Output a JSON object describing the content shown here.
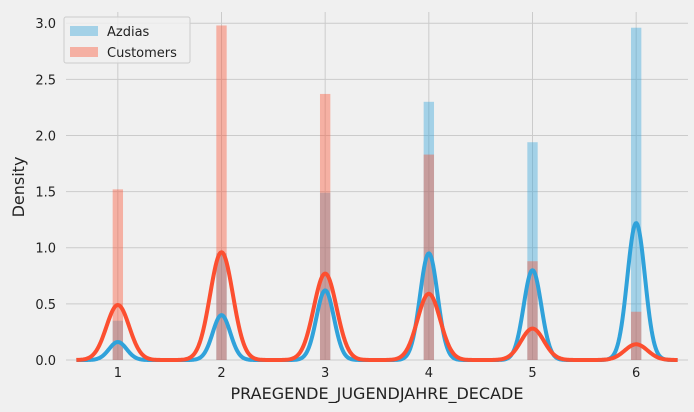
{
  "chart_data": {
    "type": "bar",
    "title": "",
    "xlabel": "PRAEGENDE_JUGENDJAHRE_DECADE",
    "ylabel": "Density",
    "xlim": [
      0.5,
      6.5
    ],
    "ylim": [
      0,
      3.1
    ],
    "xticks": [
      1,
      2,
      3,
      4,
      5,
      6
    ],
    "yticks": [
      0.0,
      0.5,
      1.0,
      1.5,
      2.0,
      2.5,
      3.0
    ],
    "grid": true,
    "legend_position": "top-left",
    "series": [
      {
        "name": "Azdias",
        "color": "#30a2da",
        "hist": {
          "x": [
            1,
            2,
            3,
            4,
            5,
            6
          ],
          "values": [
            0.35,
            0.95,
            1.49,
            2.3,
            1.94,
            2.96
          ]
        },
        "kde": {
          "x": [
            1,
            2,
            3,
            4,
            5,
            6
          ],
          "peaks": [
            0.16,
            0.4,
            0.62,
            0.95,
            0.8,
            1.22
          ],
          "sigma": 0.085
        }
      },
      {
        "name": "Customers",
        "color": "#fc4f30",
        "hist": {
          "x": [
            1,
            2,
            3,
            4,
            5,
            6
          ],
          "values": [
            1.52,
            2.98,
            2.37,
            1.83,
            0.88,
            0.43
          ]
        },
        "kde": {
          "x": [
            1,
            2,
            3,
            4,
            5,
            6
          ],
          "peaks": [
            0.49,
            0.96,
            0.77,
            0.59,
            0.28,
            0.14
          ],
          "sigma": 0.11
        }
      }
    ]
  }
}
